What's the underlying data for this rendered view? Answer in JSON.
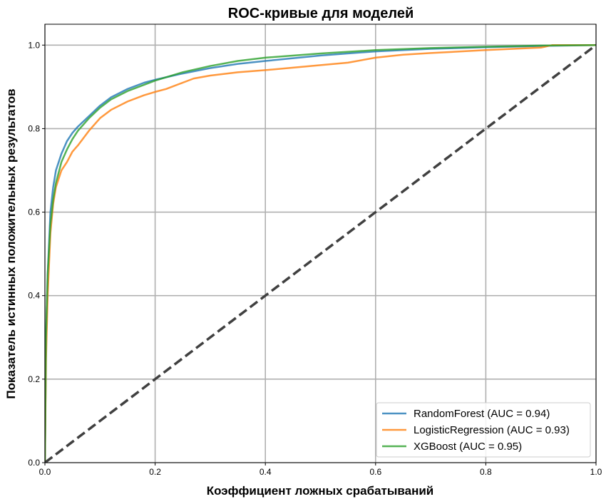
{
  "chart_data": {
    "type": "line",
    "title": "ROC-кривые для моделей",
    "xlabel": "Коэффициент ложных срабатываний",
    "ylabel": "Показатель истинных положительных результатов",
    "xlim": [
      0,
      1
    ],
    "ylim": [
      0,
      1.05
    ],
    "xticks": [
      "0.0",
      "0.2",
      "0.4",
      "0.6",
      "0.8",
      "1.0"
    ],
    "yticks": [
      "0.0",
      "0.2",
      "0.4",
      "0.6",
      "0.8",
      "1.0"
    ],
    "grid": true,
    "legend_position": "lower-right",
    "series": [
      {
        "name": "RandomForest (AUC = 0.94)",
        "color": "#1f77b4",
        "x": [
          0,
          0.002,
          0.005,
          0.01,
          0.015,
          0.02,
          0.03,
          0.04,
          0.05,
          0.06,
          0.08,
          0.1,
          0.12,
          0.15,
          0.18,
          0.2,
          0.25,
          0.3,
          0.35,
          0.4,
          0.5,
          0.6,
          0.7,
          0.8,
          0.9,
          1.0
        ],
        "y": [
          0,
          0.3,
          0.45,
          0.6,
          0.66,
          0.7,
          0.74,
          0.77,
          0.79,
          0.805,
          0.83,
          0.855,
          0.875,
          0.895,
          0.91,
          0.917,
          0.932,
          0.945,
          0.955,
          0.962,
          0.975,
          0.985,
          0.991,
          0.995,
          0.998,
          1.0
        ]
      },
      {
        "name": "LogisticRegression (AUC = 0.93)",
        "color": "#ff7f0e",
        "x": [
          0,
          0.002,
          0.005,
          0.01,
          0.015,
          0.02,
          0.03,
          0.04,
          0.05,
          0.06,
          0.08,
          0.1,
          0.12,
          0.15,
          0.18,
          0.2,
          0.22,
          0.25,
          0.27,
          0.3,
          0.35,
          0.4,
          0.5,
          0.55,
          0.6,
          0.65,
          0.7,
          0.8,
          0.9,
          0.92,
          1.0
        ],
        "y": [
          0,
          0.25,
          0.4,
          0.55,
          0.62,
          0.66,
          0.7,
          0.72,
          0.745,
          0.76,
          0.795,
          0.825,
          0.845,
          0.865,
          0.88,
          0.888,
          0.895,
          0.91,
          0.92,
          0.927,
          0.935,
          0.94,
          0.952,
          0.958,
          0.97,
          0.977,
          0.981,
          0.988,
          0.994,
          1.0,
          1.0
        ]
      },
      {
        "name": "XGBoost (AUC = 0.95)",
        "color": "#2ca02c",
        "x": [
          0,
          0.002,
          0.005,
          0.01,
          0.015,
          0.02,
          0.03,
          0.04,
          0.05,
          0.06,
          0.08,
          0.1,
          0.12,
          0.15,
          0.18,
          0.2,
          0.25,
          0.3,
          0.35,
          0.4,
          0.5,
          0.6,
          0.7,
          0.8,
          0.9,
          1.0
        ],
        "y": [
          0,
          0.3,
          0.45,
          0.57,
          0.63,
          0.67,
          0.72,
          0.75,
          0.775,
          0.795,
          0.825,
          0.85,
          0.87,
          0.89,
          0.905,
          0.915,
          0.935,
          0.95,
          0.962,
          0.97,
          0.98,
          0.988,
          0.993,
          0.996,
          0.999,
          1.0
        ]
      }
    ],
    "reference_line": {
      "x": [
        0,
        1
      ],
      "y": [
        0,
        1
      ],
      "color": "#404040"
    }
  }
}
